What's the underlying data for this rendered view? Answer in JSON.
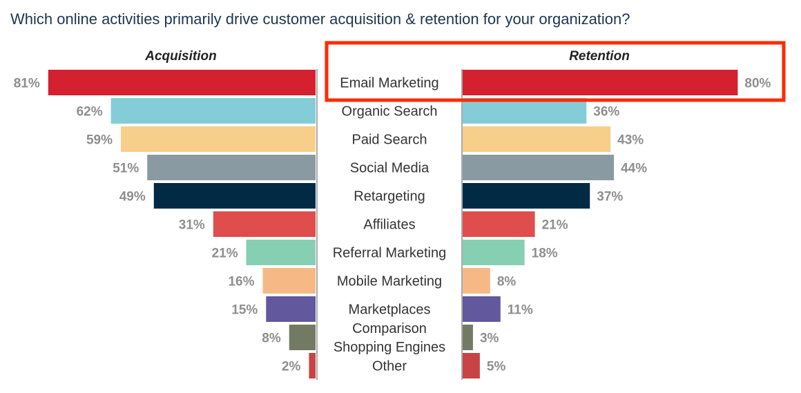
{
  "chart_data": {
    "type": "bar",
    "orientation": "horizontal-butterfly",
    "title": "Which online activities primarily drive customer acquisition & retention for your organization?",
    "categories": [
      "Email Marketing",
      "Organic Search",
      "Paid Search",
      "Social Media",
      "Retargeting",
      "Affiliates",
      "Referral Marketing",
      "Mobile Marketing",
      "Marketplaces",
      "Comparison Shopping Engines",
      "Other"
    ],
    "category_lines": [
      [
        "Email Marketing"
      ],
      [
        "Organic Search"
      ],
      [
        "Paid Search"
      ],
      [
        "Social Media"
      ],
      [
        "Retargeting"
      ],
      [
        "Affiliates"
      ],
      [
        "Referral Marketing"
      ],
      [
        "Mobile Marketing"
      ],
      [
        "Marketplaces"
      ],
      [
        "Comparison",
        "Shopping Engines"
      ],
      [
        "Other"
      ]
    ],
    "series": [
      {
        "name": "Acquisition",
        "values": [
          81,
          62,
          59,
          51,
          49,
          31,
          21,
          16,
          15,
          8,
          2
        ],
        "labels": [
          "81%",
          "62%",
          "59%",
          "51%",
          "49%",
          "31%",
          "21%",
          "16%",
          "15%",
          "8%",
          "2%"
        ]
      },
      {
        "name": "Retention",
        "values": [
          80,
          36,
          43,
          44,
          37,
          21,
          18,
          8,
          11,
          3,
          5
        ],
        "labels": [
          "80%",
          "36%",
          "43%",
          "44%",
          "37%",
          "21%",
          "18%",
          "8%",
          "11%",
          "3%",
          "5%"
        ]
      }
    ],
    "colors": [
      "#d4202f",
      "#84cdd8",
      "#f7cf8a",
      "#8a9aa3",
      "#022a45",
      "#df4d4d",
      "#87cfb3",
      "#f6b985",
      "#62589d",
      "#727a63",
      "#c84444"
    ],
    "xlim": [
      0,
      100
    ],
    "unit": "%",
    "highlight": {
      "category": "Email Marketing",
      "series": "Retention",
      "color": "#ff2a00"
    }
  }
}
